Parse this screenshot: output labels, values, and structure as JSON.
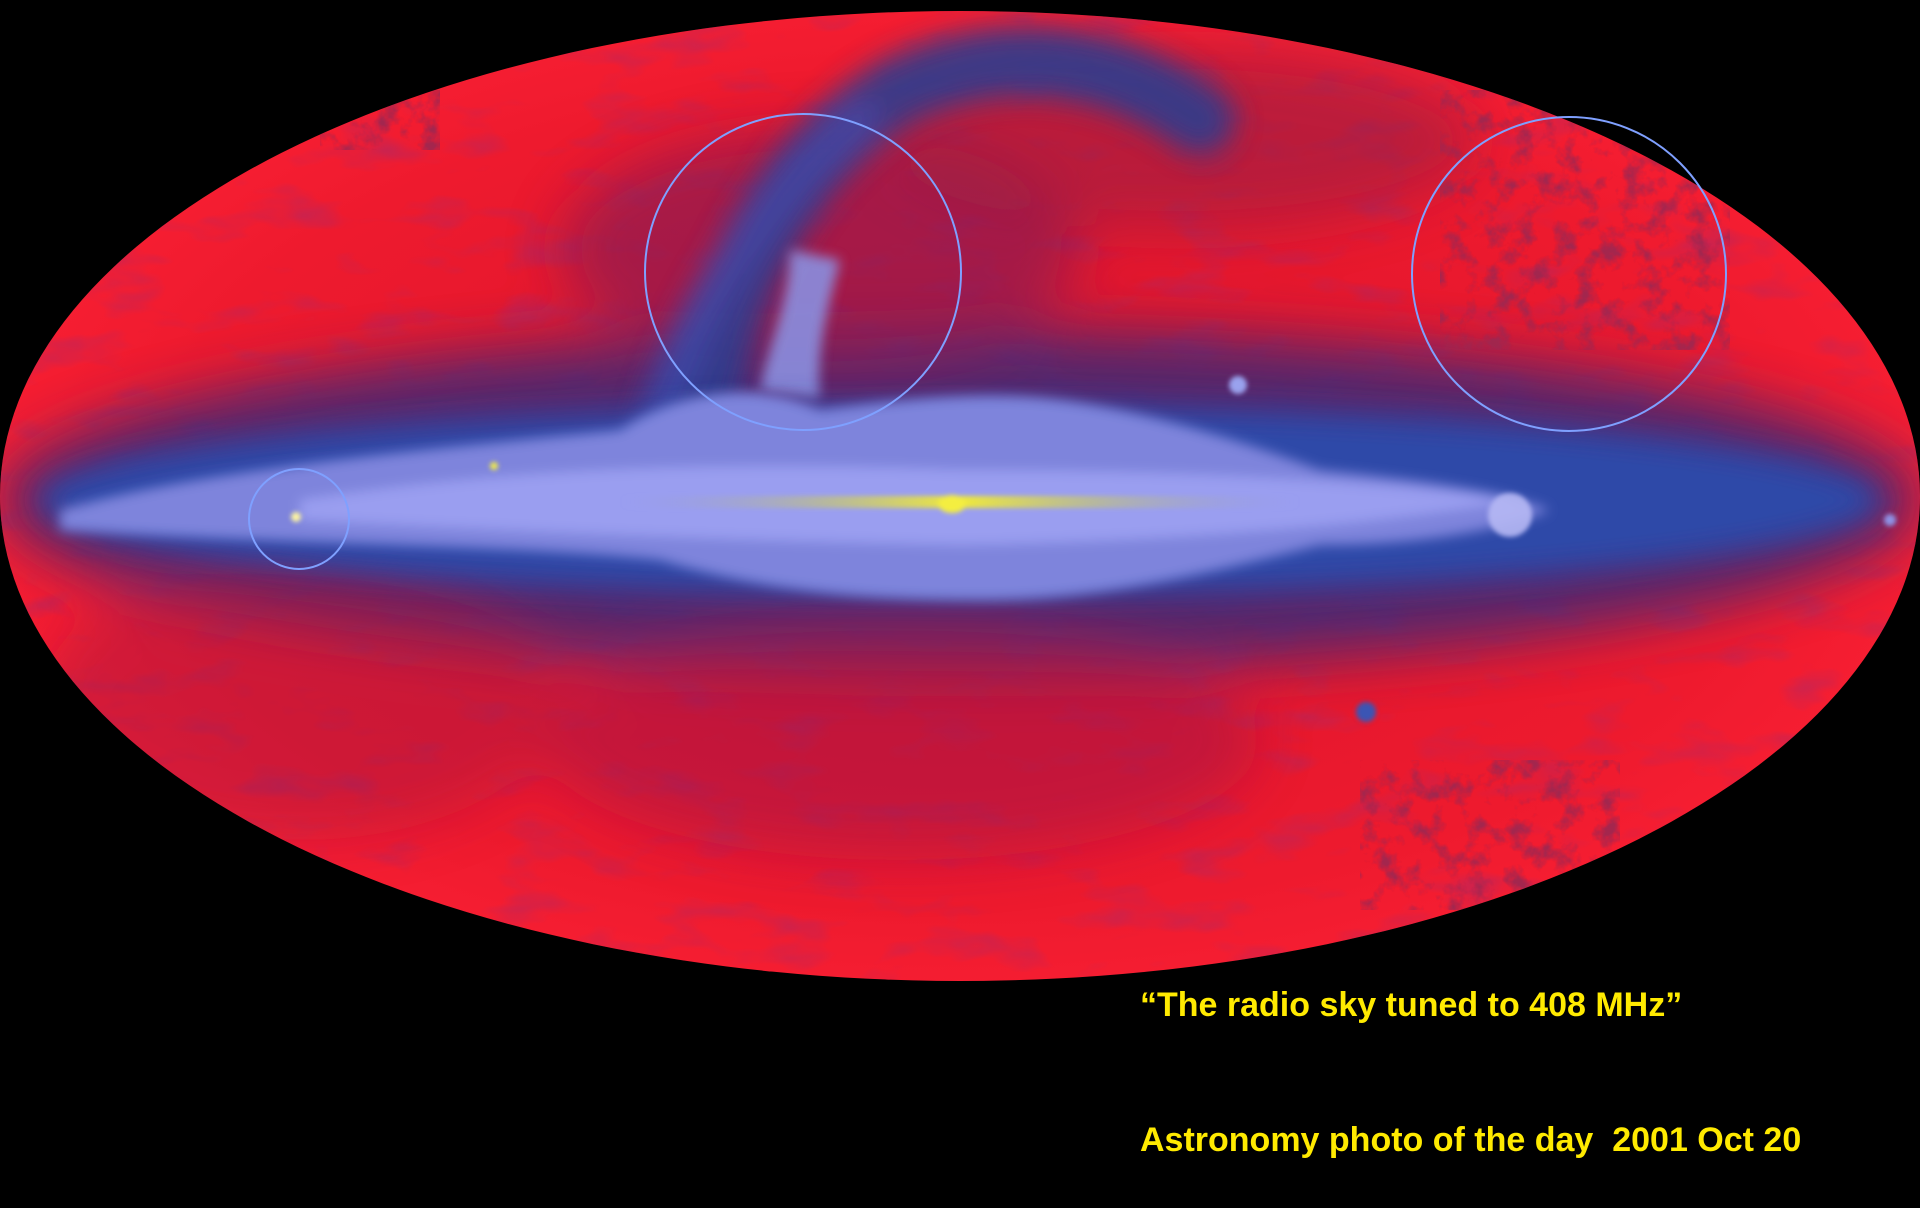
{
  "image": {
    "subject": "all-sky radio map",
    "colors": {
      "background": "#000000",
      "sky_red": "#ee1a2e",
      "sky_dark_red": "#7a0c1c",
      "plane_blue": "#3a55b4",
      "plane_lavender": "#8e93e6",
      "core_yellow": "#e8e23a",
      "ring": "#7fa0ff",
      "caption": "#ffea00"
    }
  },
  "caption": {
    "line1": "“The radio sky tuned to 408 MHz”",
    "line2": "Astronomy photo of the day  2001 Oct 20"
  }
}
